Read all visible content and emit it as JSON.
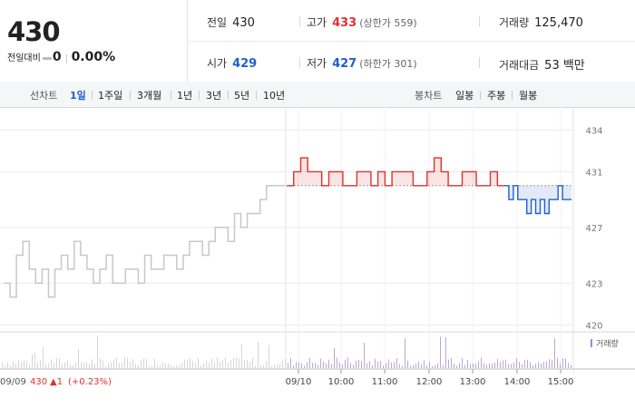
{
  "quote": {
    "price": "430",
    "change_label": "전일대비",
    "change_value": "0",
    "change_pct": "0.00%",
    "prev_close_label": "전일",
    "prev_close": "430",
    "high_label": "고가",
    "high": "433",
    "upper_limit": "(상한가 559)",
    "volume_label": "거래량",
    "volume": "125,470",
    "open_label": "시가",
    "open": "429",
    "low_label": "저가",
    "low": "427",
    "lower_limit": "(하한가 301)",
    "amount_label": "거래대금",
    "amount": "53 백만"
  },
  "tabs": {
    "line_label": "선차트",
    "line_items": [
      "1일",
      "1주일",
      "3개월",
      "1년",
      "3년",
      "5년",
      "10년"
    ],
    "candle_label": "봉차트",
    "candle_items": [
      "일봉",
      "주봉",
      "월봉"
    ],
    "active": "1일"
  },
  "colors": {
    "up": "#e0312d",
    "down": "#1f5fcc",
    "prev_day": "#c8c8c8",
    "volume": "#b9a8d8"
  },
  "chart_data": {
    "type": "line",
    "ylim": [
      419.5,
      435
    ],
    "yticks": [
      "434",
      "431",
      "427",
      "423",
      "420"
    ],
    "xticks": [
      "09/10",
      "10:00",
      "11:00",
      "12:00",
      "13:00",
      "14:00",
      "15:00"
    ],
    "baseline": 430,
    "series": [
      {
        "values": [
          423,
          422,
          425,
          426,
          424,
          423,
          424,
          422,
          424,
          425,
          424,
          426,
          425,
          424,
          423,
          424,
          425,
          423,
          423,
          424,
          424,
          423,
          425,
          424,
          424,
          425,
          425,
          424,
          425,
          426,
          426,
          425,
          426,
          427,
          427,
          426,
          428,
          427,
          428,
          428,
          429,
          430,
          430,
          430
        ]
      },
      {
        "values": [
          430,
          431,
          432,
          431,
          431,
          430,
          431,
          431,
          430,
          430,
          431,
          431,
          430,
          431,
          430,
          431,
          431,
          431,
          430,
          430,
          431,
          432,
          431,
          430,
          430,
          431,
          431,
          430,
          430,
          431,
          430
        ]
      },
      {
        "values": [
          430,
          429,
          430,
          429,
          429,
          428,
          429,
          428,
          429,
          428,
          429,
          429,
          430,
          429,
          429
        ]
      }
    ],
    "volume_legend": "거래량",
    "footer": {
      "date": "09/09",
      "price": "430",
      "change": "▲1",
      "pct": "(+0.23%)"
    }
  }
}
